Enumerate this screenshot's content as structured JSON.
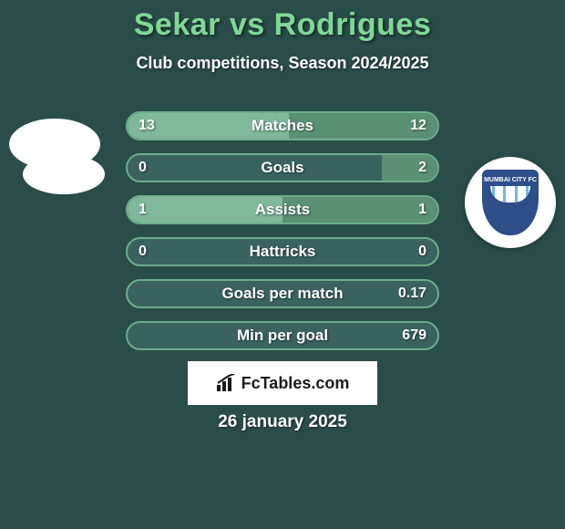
{
  "background_color": "#2a4d4a",
  "title": {
    "text": "Sekar vs Rodrigues",
    "color": "#7fd896",
    "fontsize": 34
  },
  "subtitle": {
    "text": "Club competitions, Season 2024/2025",
    "color": "#ffffff",
    "fontsize": 18
  },
  "date": {
    "text": "26 january 2025",
    "color": "#ffffff",
    "fontsize": 19
  },
  "brand": {
    "text": "FcTables.com",
    "bg": "#ffffff",
    "color": "#1a1a1a"
  },
  "logos": {
    "left1": {
      "shape": "ellipse",
      "bg": "#ffffff"
    },
    "left2": {
      "shape": "ellipse-small",
      "bg": "#ffffff"
    },
    "right": {
      "shape": "badge",
      "outer_bg": "#ffffff",
      "badge_bg": "#2d4e88",
      "badge_text": "MUMBAI CITY FC",
      "badge_text_color": "#ffffff",
      "stripe_colors": [
        "#6fb8e0",
        "#ffffff",
        "#6fb8e0",
        "#ffffff",
        "#6fb8e0",
        "#ffffff",
        "#6fb8e0"
      ],
      "stripes_bg": "#ffffff"
    }
  },
  "stats": {
    "track_color": "#3a6360",
    "border_color": "#6cae8a",
    "left_fill": "#7fb89a",
    "right_fill": "#5a9074",
    "label_color": "#ffffff",
    "value_color": "#ffffff",
    "rows": [
      {
        "label": "Matches",
        "left_val": "13",
        "right_val": "12",
        "left_pct": 52,
        "right_pct": 48
      },
      {
        "label": "Goals",
        "left_val": "0",
        "right_val": "2",
        "left_pct": 0,
        "right_pct": 18
      },
      {
        "label": "Assists",
        "left_val": "1",
        "right_val": "1",
        "left_pct": 50,
        "right_pct": 50
      },
      {
        "label": "Hattricks",
        "left_val": "0",
        "right_val": "0",
        "left_pct": 0,
        "right_pct": 0
      },
      {
        "label": "Goals per match",
        "left_val": "",
        "right_val": "0.17",
        "left_pct": 0,
        "right_pct": 0
      },
      {
        "label": "Min per goal",
        "left_val": "",
        "right_val": "679",
        "left_pct": 0,
        "right_pct": 0
      }
    ]
  }
}
